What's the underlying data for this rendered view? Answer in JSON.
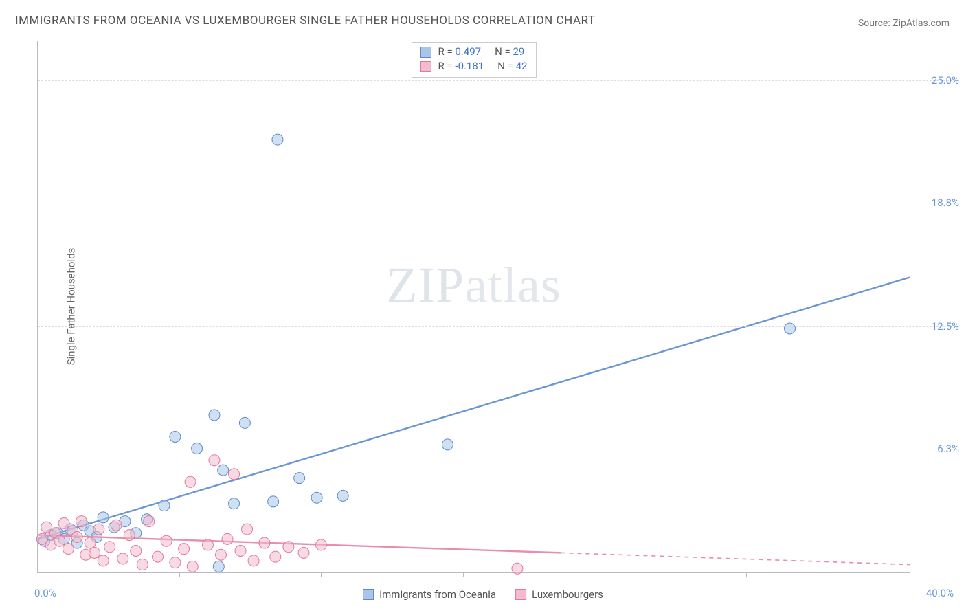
{
  "title": "IMMIGRANTS FROM OCEANIA VS LUXEMBOURGER SINGLE FATHER HOUSEHOLDS CORRELATION CHART",
  "source_label": "Source: ZipAtlas.com",
  "y_axis_label": "Single Father Households",
  "watermark": {
    "bold": "ZIP",
    "light": "atlas"
  },
  "chart": {
    "type": "scatter-with-regression",
    "background_color": "#ffffff",
    "grid_color": "#dddddd",
    "axis_color": "#bbbbbb",
    "xlim": [
      0,
      40
    ],
    "ylim": [
      0,
      27
    ],
    "x_tick_positions": [
      0,
      6.5,
      13,
      19.5,
      26,
      32.5,
      40
    ],
    "x_min_label": "0.0%",
    "x_max_label": "40.0%",
    "y_ticks": [
      {
        "value": 6.3,
        "label": "6.3%"
      },
      {
        "value": 12.5,
        "label": "12.5%"
      },
      {
        "value": 18.8,
        "label": "18.8%"
      },
      {
        "value": 25.0,
        "label": "25.0%"
      }
    ],
    "marker_radius": 8,
    "marker_opacity": 0.55,
    "line_width": 2.4,
    "series": [
      {
        "name": "Immigrants from Oceania",
        "color": "#6a97d4",
        "fill": "#a9c6ea",
        "stroke": "#5e8ac8",
        "R": "0.497",
        "N": "29",
        "regression": {
          "x1": 0,
          "y1": 1.7,
          "x2": 40,
          "y2": 15.0,
          "solid_until_x": 40
        },
        "points": [
          [
            0.3,
            1.6
          ],
          [
            0.6,
            1.9
          ],
          [
            0.9,
            2.0
          ],
          [
            1.2,
            1.7
          ],
          [
            1.5,
            2.2
          ],
          [
            1.8,
            1.5
          ],
          [
            2.1,
            2.4
          ],
          [
            2.4,
            2.1
          ],
          [
            2.7,
            1.8
          ],
          [
            3.0,
            2.8
          ],
          [
            3.5,
            2.3
          ],
          [
            4.0,
            2.6
          ],
          [
            4.5,
            2.0
          ],
          [
            5.0,
            2.7
          ],
          [
            5.8,
            3.4
          ],
          [
            6.3,
            6.9
          ],
          [
            7.3,
            6.3
          ],
          [
            8.1,
            8.0
          ],
          [
            8.3,
            0.3
          ],
          [
            8.5,
            5.2
          ],
          [
            9.0,
            3.5
          ],
          [
            9.5,
            7.6
          ],
          [
            10.8,
            3.6
          ],
          [
            11.0,
            22.0
          ],
          [
            12.0,
            4.8
          ],
          [
            12.8,
            3.8
          ],
          [
            14.0,
            3.9
          ],
          [
            18.8,
            6.5
          ],
          [
            34.5,
            12.4
          ]
        ]
      },
      {
        "name": "Luxembourgers",
        "color": "#e78fa9",
        "fill": "#f3bccd",
        "stroke": "#e07a99",
        "R": "-0.181",
        "N": "42",
        "regression": {
          "x1": 0,
          "y1": 1.9,
          "x2": 40,
          "y2": 0.4,
          "solid_until_x": 24
        },
        "points": [
          [
            0.2,
            1.7
          ],
          [
            0.4,
            2.3
          ],
          [
            0.6,
            1.4
          ],
          [
            0.8,
            2.0
          ],
          [
            1.0,
            1.6
          ],
          [
            1.2,
            2.5
          ],
          [
            1.4,
            1.2
          ],
          [
            1.6,
            2.1
          ],
          [
            1.8,
            1.8
          ],
          [
            2.0,
            2.6
          ],
          [
            2.2,
            0.9
          ],
          [
            2.4,
            1.5
          ],
          [
            2.6,
            1.0
          ],
          [
            2.8,
            2.2
          ],
          [
            3.0,
            0.6
          ],
          [
            3.3,
            1.3
          ],
          [
            3.6,
            2.4
          ],
          [
            3.9,
            0.7
          ],
          [
            4.2,
            1.9
          ],
          [
            4.5,
            1.1
          ],
          [
            4.8,
            0.4
          ],
          [
            5.1,
            2.6
          ],
          [
            5.5,
            0.8
          ],
          [
            5.9,
            1.6
          ],
          [
            6.3,
            0.5
          ],
          [
            6.7,
            1.2
          ],
          [
            7.1,
            0.3
          ],
          [
            7.0,
            4.6
          ],
          [
            7.8,
            1.4
          ],
          [
            8.1,
            5.7
          ],
          [
            8.4,
            0.9
          ],
          [
            8.7,
            1.7
          ],
          [
            9.0,
            5.0
          ],
          [
            9.3,
            1.1
          ],
          [
            9.6,
            2.2
          ],
          [
            9.9,
            0.6
          ],
          [
            10.4,
            1.5
          ],
          [
            10.9,
            0.8
          ],
          [
            11.5,
            1.3
          ],
          [
            12.2,
            1.0
          ],
          [
            13.0,
            1.4
          ],
          [
            22.0,
            0.2
          ]
        ]
      }
    ]
  }
}
